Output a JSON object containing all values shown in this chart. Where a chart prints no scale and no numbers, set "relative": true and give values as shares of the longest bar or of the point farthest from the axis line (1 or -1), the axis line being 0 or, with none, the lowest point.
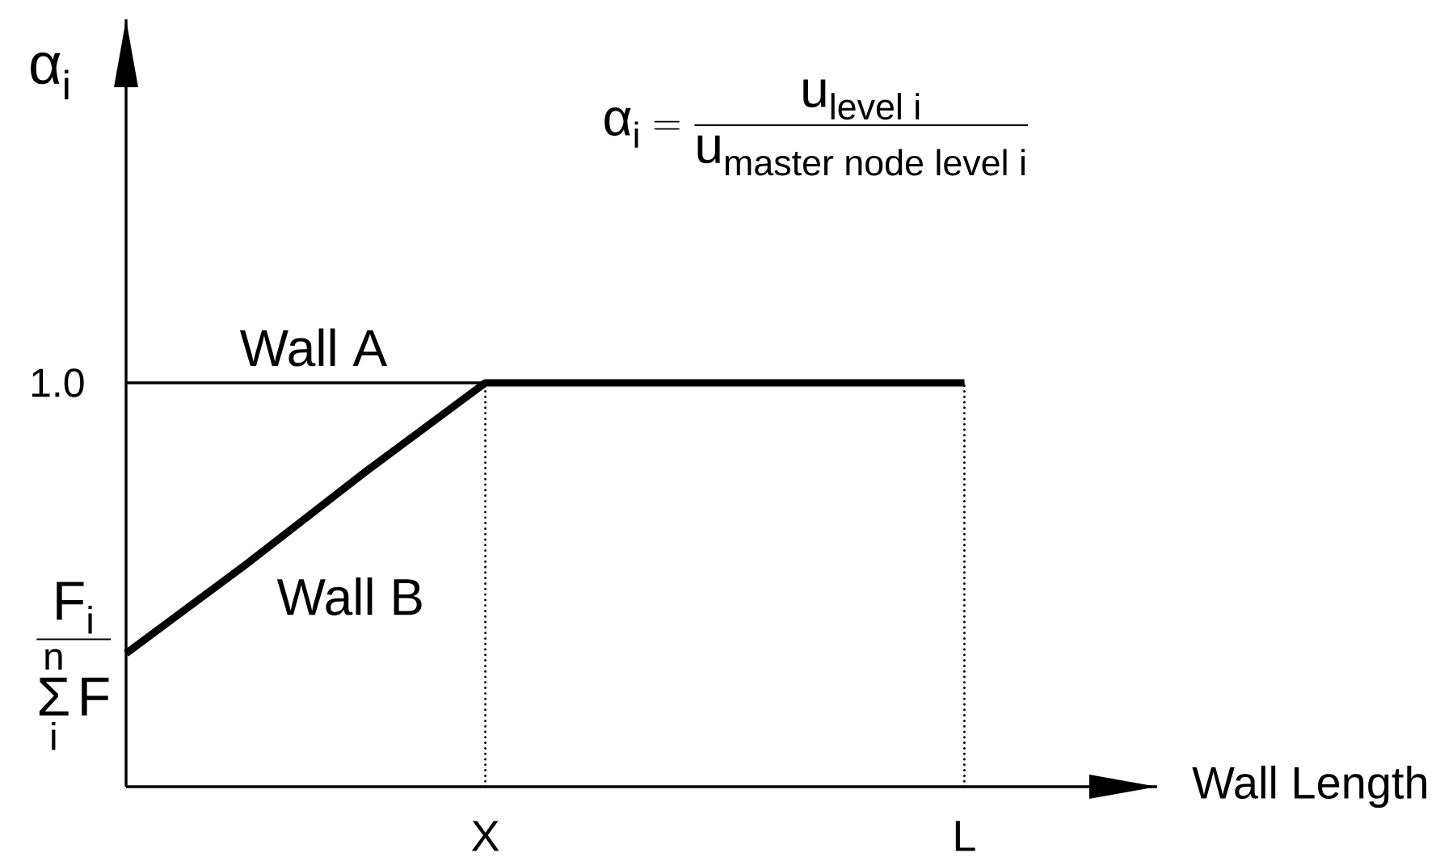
{
  "chart_data": {
    "type": "line",
    "relative": true,
    "xlabel": "Wall Length",
    "ylabel": "α$_{i}$",
    "categories": [
      null,
      null,
      null,
      "X",
      null,
      null,
      null,
      "L"
    ],
    "annotations": [
      "\\text{α}_{\\text{i}} = \\frac{\\text{u}_{\\text{level  i}}}{\\text{u}_{\\text{master node level i}}}",
      "1.0",
      "\\frac{\\text{F}_{\\text{i}}}{\\mathop{\\text{Σ}}\\limits_{\\text{i}}^{\\text{n}}\\text{F}}"
    ],
    "marker": "none",
    "series": [
      {
        "name": "Wall A",
        "color": "#000000",
        "values": [
          1,
          1,
          1,
          1,
          1,
          1,
          1,
          1
        ]
      },
      {
        "name": "Wall B",
        "color": "#000000",
        "values": [
          0.33,
          0.55,
          0.78,
          1,
          1,
          1,
          1,
          1
        ]
      },
      {
        "color": "#000000",
        "x": [
          "X",
          "X"
        ],
        "values": [
          0,
          1
        ],
        "line_style": "dotted"
      },
      {
        "color": "#000000",
        "x": [
          "L",
          "L"
        ],
        "values": [
          0,
          1
        ],
        "line_style": "dotted"
      }
    ]
  }
}
